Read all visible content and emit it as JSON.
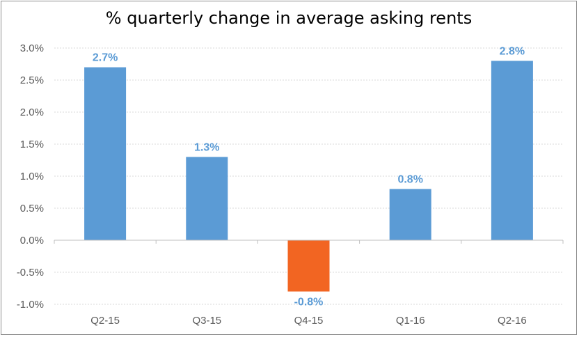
{
  "chart_data": {
    "type": "bar",
    "title": "% quarterly change in average asking rents",
    "categories": [
      "Q2-15",
      "Q3-15",
      "Q4-15",
      "Q1-16",
      "Q2-16"
    ],
    "values": [
      2.7,
      1.3,
      -0.8,
      0.8,
      2.8
    ],
    "data_labels": [
      "2.7%",
      "1.3%",
      "-0.8%",
      "0.8%",
      "2.8%"
    ],
    "ylim": [
      -1.0,
      3.0
    ],
    "yticks": [
      -1.0,
      -0.5,
      0.0,
      0.5,
      1.0,
      1.5,
      2.0,
      2.5,
      3.0
    ],
    "ytick_labels": [
      "-1.0%",
      "-0.5%",
      "0.0%",
      "0.5%",
      "1.0%",
      "1.5%",
      "2.0%",
      "2.5%",
      "3.0%"
    ],
    "xlabel": "",
    "ylabel": "",
    "grid": true,
    "colors": {
      "positive": "#5b9bd5",
      "negative": "#f26522",
      "label": "#5b9bd5",
      "grid": "#d9d9d9",
      "axis": "#bfbfbf"
    }
  }
}
